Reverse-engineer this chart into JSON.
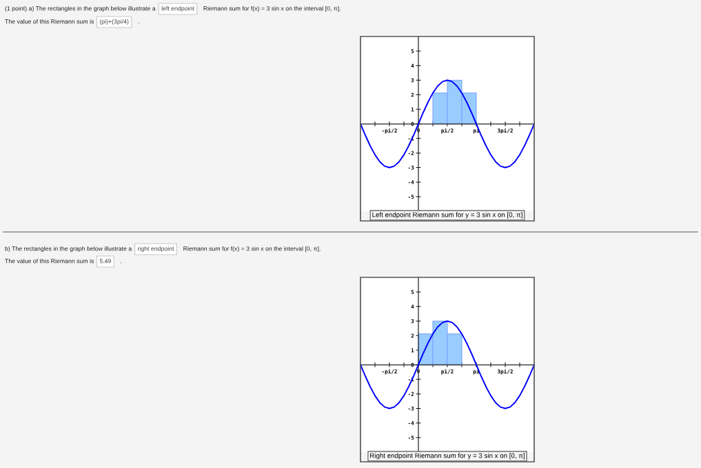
{
  "chart_data": [
    {
      "type": "line",
      "title": "Left endpoint Riemann sum for y = 3 sin x on [0, π]",
      "annotations": [
        "(1 point) a) The rectangles in the graph below illustrate a",
        "left endpoint",
        "Riemann sum for f(x) = 3 sin x on the interval [0, π].",
        "The value of this Riemann sum is",
        "(pi)+(3pi/4)",
        "."
      ],
      "xlim": [
        -3.1416,
        6.2832
      ],
      "ylim": [
        -6,
        6
      ],
      "xticks": [
        {
          "value": -2.3562,
          "label": null
        },
        {
          "value": -1.5708,
          "label": "-pi/2"
        },
        {
          "value": -0.7854,
          "label": null
        },
        0,
        {
          "value": 0.7854,
          "label": null
        },
        {
          "value": 1.5708,
          "label": "pi/2"
        },
        {
          "value": 2.3562,
          "label": null
        },
        {
          "value": 3.1416,
          "label": "pi"
        },
        {
          "value": 3.927,
          "label": null
        },
        {
          "value": 4.7124,
          "label": "3pi/2"
        },
        {
          "value": 5.4978,
          "label": null
        }
      ],
      "yticks": [
        -5,
        -4,
        -3,
        -2,
        -1,
        0,
        1,
        2,
        3,
        4,
        5
      ],
      "series": [
        {
          "type": "bar",
          "x": [
            1.1781,
            1.9635,
            2.7489
          ],
          "values": [
            2.12,
            3,
            2.12
          ],
          "color": "#99ccff"
        },
        {
          "type": "line",
          "color": "#0000ff",
          "x": [
            -3.1416,
            -2.8798,
            -2.618,
            -2.3562,
            -2.0944,
            -1.8326,
            -1.5708,
            -1.309,
            -1.0472,
            -0.7854,
            -0.5236,
            -0.2618,
            0,
            0.2618,
            0.5236,
            0.7854,
            1.0472,
            1.309,
            1.5708,
            1.8326,
            2.0944,
            2.3562,
            2.618,
            2.8798,
            3.1416,
            3.4034,
            3.6652,
            3.927,
            4.1888,
            4.4506,
            4.7124,
            4.9742,
            5.236,
            5.4978,
            5.7596,
            6.0214,
            6.2832
          ],
          "values": [
            0,
            -0.78,
            -1.5,
            -2.12,
            -2.6,
            -2.9,
            -3,
            -2.9,
            -2.6,
            -2.12,
            -1.5,
            -0.78,
            0,
            0.78,
            1.5,
            2.12,
            2.6,
            2.9,
            3,
            2.9,
            2.6,
            2.12,
            1.5,
            0.78,
            0,
            -0.78,
            -1.5,
            -2.12,
            -2.6,
            -2.9,
            -3,
            -2.9,
            -2.6,
            -2.12,
            -1.5,
            -0.78,
            0
          ]
        }
      ]
    },
    {
      "type": "line",
      "title": "Right endpoint Riemann sum for y = 3 sin x on [0, π]",
      "annotations": [
        "b) The rectangles in the graph below illustrate a",
        "right endpoint",
        "Riemann sum for f(x) = 3 sin x on the interval [0, π].",
        "The value of this Riemann sum is",
        "5.49",
        "."
      ],
      "xlim": [
        -3.1416,
        6.2832
      ],
      "ylim": [
        -6,
        6
      ],
      "xticks": [
        {
          "value": -2.3562,
          "label": null
        },
        {
          "value": -1.5708,
          "label": "-pi/2"
        },
        {
          "value": -0.7854,
          "label": null
        },
        0,
        {
          "value": 0.7854,
          "label": null
        },
        {
          "value": 1.5708,
          "label": "pi/2"
        },
        {
          "value": 2.3562,
          "label": null
        },
        {
          "value": 3.1416,
          "label": "pi"
        },
        {
          "value": 3.927,
          "label": null
        },
        {
          "value": 4.7124,
          "label": "3pi/2"
        },
        {
          "value": 5.4978,
          "label": null
        }
      ],
      "yticks": [
        -5,
        -4,
        -3,
        -2,
        -1,
        0,
        1,
        2,
        3,
        4,
        5
      ],
      "series": [
        {
          "type": "bar",
          "x": [
            0.3927,
            1.1781,
            1.9635
          ],
          "values": [
            2.12,
            3,
            2.12
          ],
          "color": "#99ccff"
        },
        {
          "type": "line",
          "color": "#0000ff",
          "x": [
            -3.1416,
            -2.8798,
            -2.618,
            -2.3562,
            -2.0944,
            -1.8326,
            -1.5708,
            -1.309,
            -1.0472,
            -0.7854,
            -0.5236,
            -0.2618,
            0,
            0.2618,
            0.5236,
            0.7854,
            1.0472,
            1.309,
            1.5708,
            1.8326,
            2.0944,
            2.3562,
            2.618,
            2.8798,
            3.1416,
            3.4034,
            3.6652,
            3.927,
            4.1888,
            4.4506,
            4.7124,
            4.9742,
            5.236,
            5.4978,
            5.7596,
            6.0214,
            6.2832
          ],
          "values": [
            0,
            -0.78,
            -1.5,
            -2.12,
            -2.6,
            -2.9,
            -3,
            -2.9,
            -2.6,
            -2.12,
            -1.5,
            -0.78,
            0,
            0.78,
            1.5,
            2.12,
            2.6,
            2.9,
            3,
            2.9,
            2.6,
            2.12,
            1.5,
            0.78,
            0,
            -0.78,
            -1.5,
            -2.12,
            -2.6,
            -2.9,
            -3,
            -2.9,
            -2.6,
            -2.12,
            -1.5,
            -0.78,
            0
          ]
        }
      ]
    }
  ]
}
